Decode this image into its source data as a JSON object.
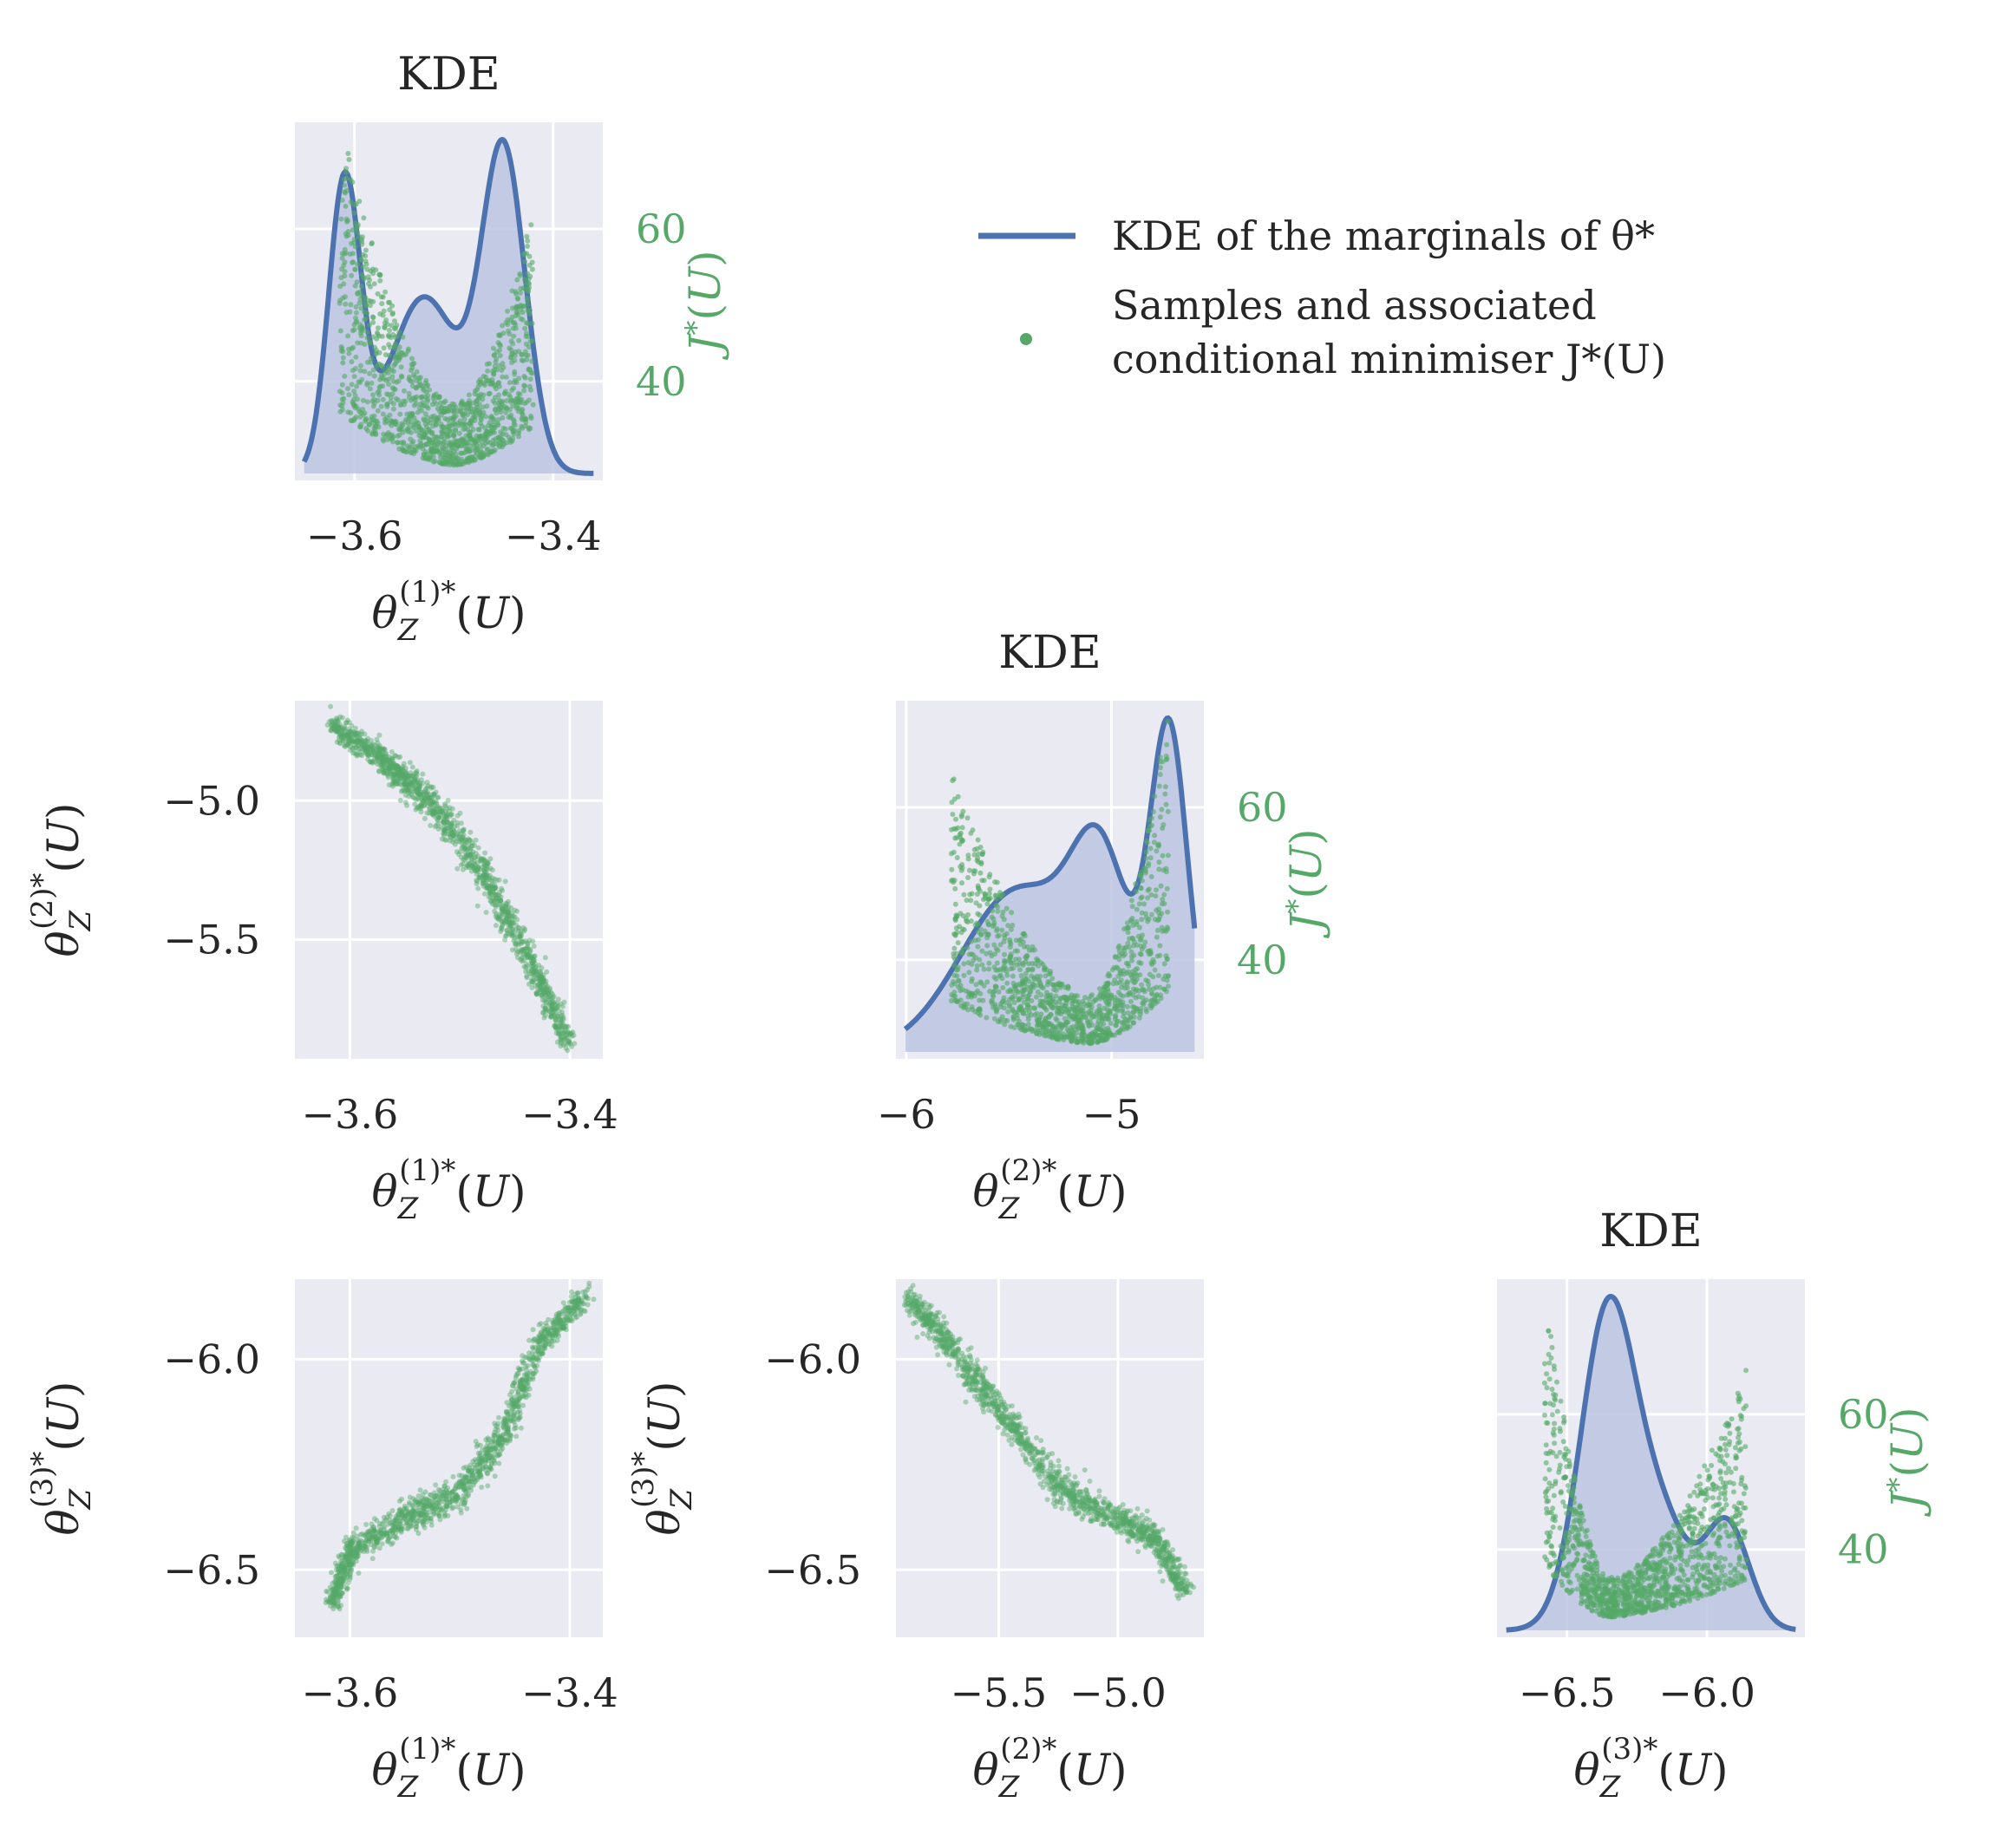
{
  "chart_data": [
    {
      "id": "kde1",
      "type": "kde+scatter",
      "title": "KDE",
      "xlabel": "θ_Z^{(1)*}(U)",
      "ylabel_right": "J*(U)",
      "xlim": [
        -3.66,
        -3.35
      ],
      "xticks": [
        -3.6,
        -3.4
      ],
      "xtick_labels": [
        "−3.6",
        "−3.4"
      ],
      "j_range": [
        27,
        74
      ],
      "j_ticks": [
        40,
        60
      ],
      "j_tick_labels": [
        "40",
        "60"
      ],
      "kde_peaks": [
        {
          "x": -3.61,
          "height": 0.9,
          "width": 0.016
        },
        {
          "x": -3.53,
          "height": 0.55,
          "width": 0.035
        },
        {
          "x": -3.45,
          "height": 1.0,
          "width": 0.022
        }
      ],
      "scatter_shape": {
        "x_min": -3.615,
        "x_max": -3.42,
        "vertex_x": -3.5,
        "j_min": 29,
        "j_max_left": 75,
        "j_max_right": 63,
        "spread": 28
      }
    },
    {
      "id": "scatter21",
      "type": "scatter",
      "xlabel": "θ_Z^{(1)*}(U)",
      "ylabel": "θ_Z^{(2)*}(U)",
      "xlim": [
        -3.65,
        -3.37
      ],
      "ylim": [
        -5.93,
        -4.64
      ],
      "xticks": [
        -3.6,
        -3.4
      ],
      "xtick_labels": [
        "−3.6",
        "−3.4"
      ],
      "yticks": [
        -5.0,
        -5.5
      ],
      "ytick_labels": [
        "−5.0",
        "−5.5"
      ],
      "curve": [
        [
          -3.615,
          -4.73
        ],
        [
          -3.57,
          -4.85
        ],
        [
          -3.53,
          -5.0
        ],
        [
          -3.48,
          -5.25
        ],
        [
          -3.44,
          -5.55
        ],
        [
          -3.4,
          -5.88
        ]
      ]
    },
    {
      "id": "kde2",
      "type": "kde+scatter",
      "title": "KDE",
      "xlabel": "θ_Z^{(2)*}(U)",
      "ylabel_right": "J*(U)",
      "xlim": [
        -6.05,
        -4.55
      ],
      "xticks": [
        -6,
        -5
      ],
      "xtick_labels": [
        "−6",
        "−5"
      ],
      "j_range": [
        27,
        74
      ],
      "j_ticks": [
        40,
        60
      ],
      "j_tick_labels": [
        "40",
        "60"
      ],
      "kde_peaks": [
        {
          "x": -5.45,
          "height": 0.45,
          "width": 0.28
        },
        {
          "x": -5.05,
          "height": 0.45,
          "width": 0.14
        },
        {
          "x": -4.72,
          "height": 0.88,
          "width": 0.09
        }
      ],
      "scatter_shape": {
        "x_min": -5.78,
        "x_max": -4.72,
        "vertex_x": -5.1,
        "j_min": 29,
        "j_max_left": 65,
        "j_max_right": 74,
        "spread": 22
      }
    },
    {
      "id": "scatter31",
      "type": "scatter",
      "xlabel": "θ_Z^{(1)*}(U)",
      "ylabel": "θ_Z^{(3)*}(U)",
      "xlim": [
        -3.65,
        -3.37
      ],
      "ylim": [
        -6.66,
        -5.81
      ],
      "xticks": [
        -3.6,
        -3.4
      ],
      "xtick_labels": [
        "−3.6",
        "−3.4"
      ],
      "yticks": [
        -6.0,
        -6.5
      ],
      "ytick_labels": [
        "−6.0",
        "−6.5"
      ],
      "curve": [
        [
          -3.615,
          -6.58
        ],
        [
          -3.6,
          -6.45
        ],
        [
          -3.55,
          -6.38
        ],
        [
          -3.5,
          -6.32
        ],
        [
          -3.46,
          -6.18
        ],
        [
          -3.43,
          -5.97
        ],
        [
          -3.385,
          -5.85
        ]
      ]
    },
    {
      "id": "scatter32",
      "type": "scatter",
      "xlabel": "θ_Z^{(2)*}(U)",
      "ylabel": "θ_Z^{(3)*}(U)",
      "xlim": [
        -5.93,
        -4.64
      ],
      "ylim": [
        -6.66,
        -5.81
      ],
      "xticks": [
        -5.5,
        -5.0
      ],
      "xtick_labels": [
        "−5.5",
        "−5.0"
      ],
      "yticks": [
        -6.0,
        -6.5
      ],
      "ytick_labels": [
        "−6.0",
        "−6.5"
      ],
      "curve": [
        [
          -5.88,
          -5.85
        ],
        [
          -5.7,
          -5.97
        ],
        [
          -5.5,
          -6.12
        ],
        [
          -5.25,
          -6.3
        ],
        [
          -5.05,
          -6.37
        ],
        [
          -4.85,
          -6.42
        ],
        [
          -4.72,
          -6.55
        ]
      ]
    },
    {
      "id": "kde3",
      "type": "kde+scatter",
      "title": "KDE",
      "xlabel": "θ_Z^{(3)*}(U)",
      "ylabel_right": "J*(U)",
      "xlim": [
        -6.75,
        -5.65
      ],
      "xticks": [
        -6.5,
        -6.0
      ],
      "xtick_labels": [
        "−6.5",
        "−6.0"
      ],
      "j_range": [
        27,
        80
      ],
      "j_ticks": [
        40,
        60
      ],
      "j_tick_labels": [
        "40",
        "60"
      ],
      "kde_peaks": [
        {
          "x": -6.35,
          "height": 1.0,
          "width": 0.1
        },
        {
          "x": -6.15,
          "height": 0.28,
          "width": 0.09
        },
        {
          "x": -5.93,
          "height": 0.33,
          "width": 0.08
        }
      ],
      "scatter_shape": {
        "x_min": -6.58,
        "x_max": -5.86,
        "vertex_x": -6.35,
        "j_min": 30,
        "j_max_left": 80,
        "j_max_right": 67,
        "spread": 20
      }
    }
  ],
  "legend": {
    "kde_label": "KDE of the marginals of θ*",
    "samples_label_line1": "Samples and associated",
    "samples_label_line2": "conditional minimiser J*(U)"
  },
  "colors": {
    "kde_line": "#4c72b0",
    "kde_fill": "#b8c2e0",
    "scatter": "#55a868",
    "panel_bg": "#eaeaf2",
    "grid": "#ffffff"
  }
}
